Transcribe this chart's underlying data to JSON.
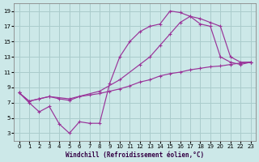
{
  "line1_x": [
    0,
    1,
    2,
    3,
    4,
    5,
    6,
    7,
    8,
    9,
    10,
    11,
    12,
    13,
    14,
    15,
    16,
    17,
    18,
    19,
    20,
    21,
    22,
    23
  ],
  "line1_y": [
    8.3,
    7.0,
    5.8,
    6.5,
    4.2,
    3.0,
    4.5,
    4.3,
    4.3,
    9.5,
    13.0,
    15.0,
    16.3,
    17.0,
    17.3,
    19.0,
    18.8,
    18.3,
    17.3,
    17.0,
    13.0,
    12.3,
    12.0,
    12.3
  ],
  "line2_x": [
    0,
    1,
    2,
    3,
    5,
    8,
    10,
    12,
    13,
    14,
    15,
    16,
    17,
    18,
    19,
    20,
    21,
    22,
    23
  ],
  "line2_y": [
    8.3,
    7.2,
    7.5,
    7.8,
    7.5,
    8.5,
    10.0,
    12.0,
    13.0,
    14.5,
    16.0,
    17.5,
    18.3,
    18.0,
    17.5,
    17.0,
    13.0,
    12.3,
    12.3
  ],
  "line3_x": [
    0,
    1,
    2,
    3,
    4,
    5,
    6,
    7,
    8,
    9,
    10,
    11,
    12,
    13,
    14,
    15,
    16,
    17,
    18,
    19,
    20,
    21,
    22,
    23
  ],
  "line3_y": [
    8.3,
    7.2,
    7.5,
    7.8,
    7.5,
    7.3,
    7.8,
    8.0,
    8.2,
    8.5,
    8.8,
    9.2,
    9.7,
    10.0,
    10.5,
    10.8,
    11.0,
    11.3,
    11.5,
    11.7,
    11.8,
    12.0,
    12.2,
    12.3
  ],
  "bg_color": "#cce8e8",
  "grid_color": "#aacccc",
  "line_color": "#993399",
  "xlabel": "Windchill (Refroidissement éolien,°C)",
  "xlim": [
    -0.5,
    23.5
  ],
  "ylim": [
    2.0,
    20.0
  ],
  "xticks": [
    0,
    1,
    2,
    3,
    4,
    5,
    6,
    7,
    8,
    9,
    10,
    11,
    12,
    13,
    14,
    15,
    16,
    17,
    18,
    19,
    20,
    21,
    22,
    23
  ],
  "yticks": [
    3,
    5,
    7,
    9,
    11,
    13,
    15,
    17,
    19
  ]
}
